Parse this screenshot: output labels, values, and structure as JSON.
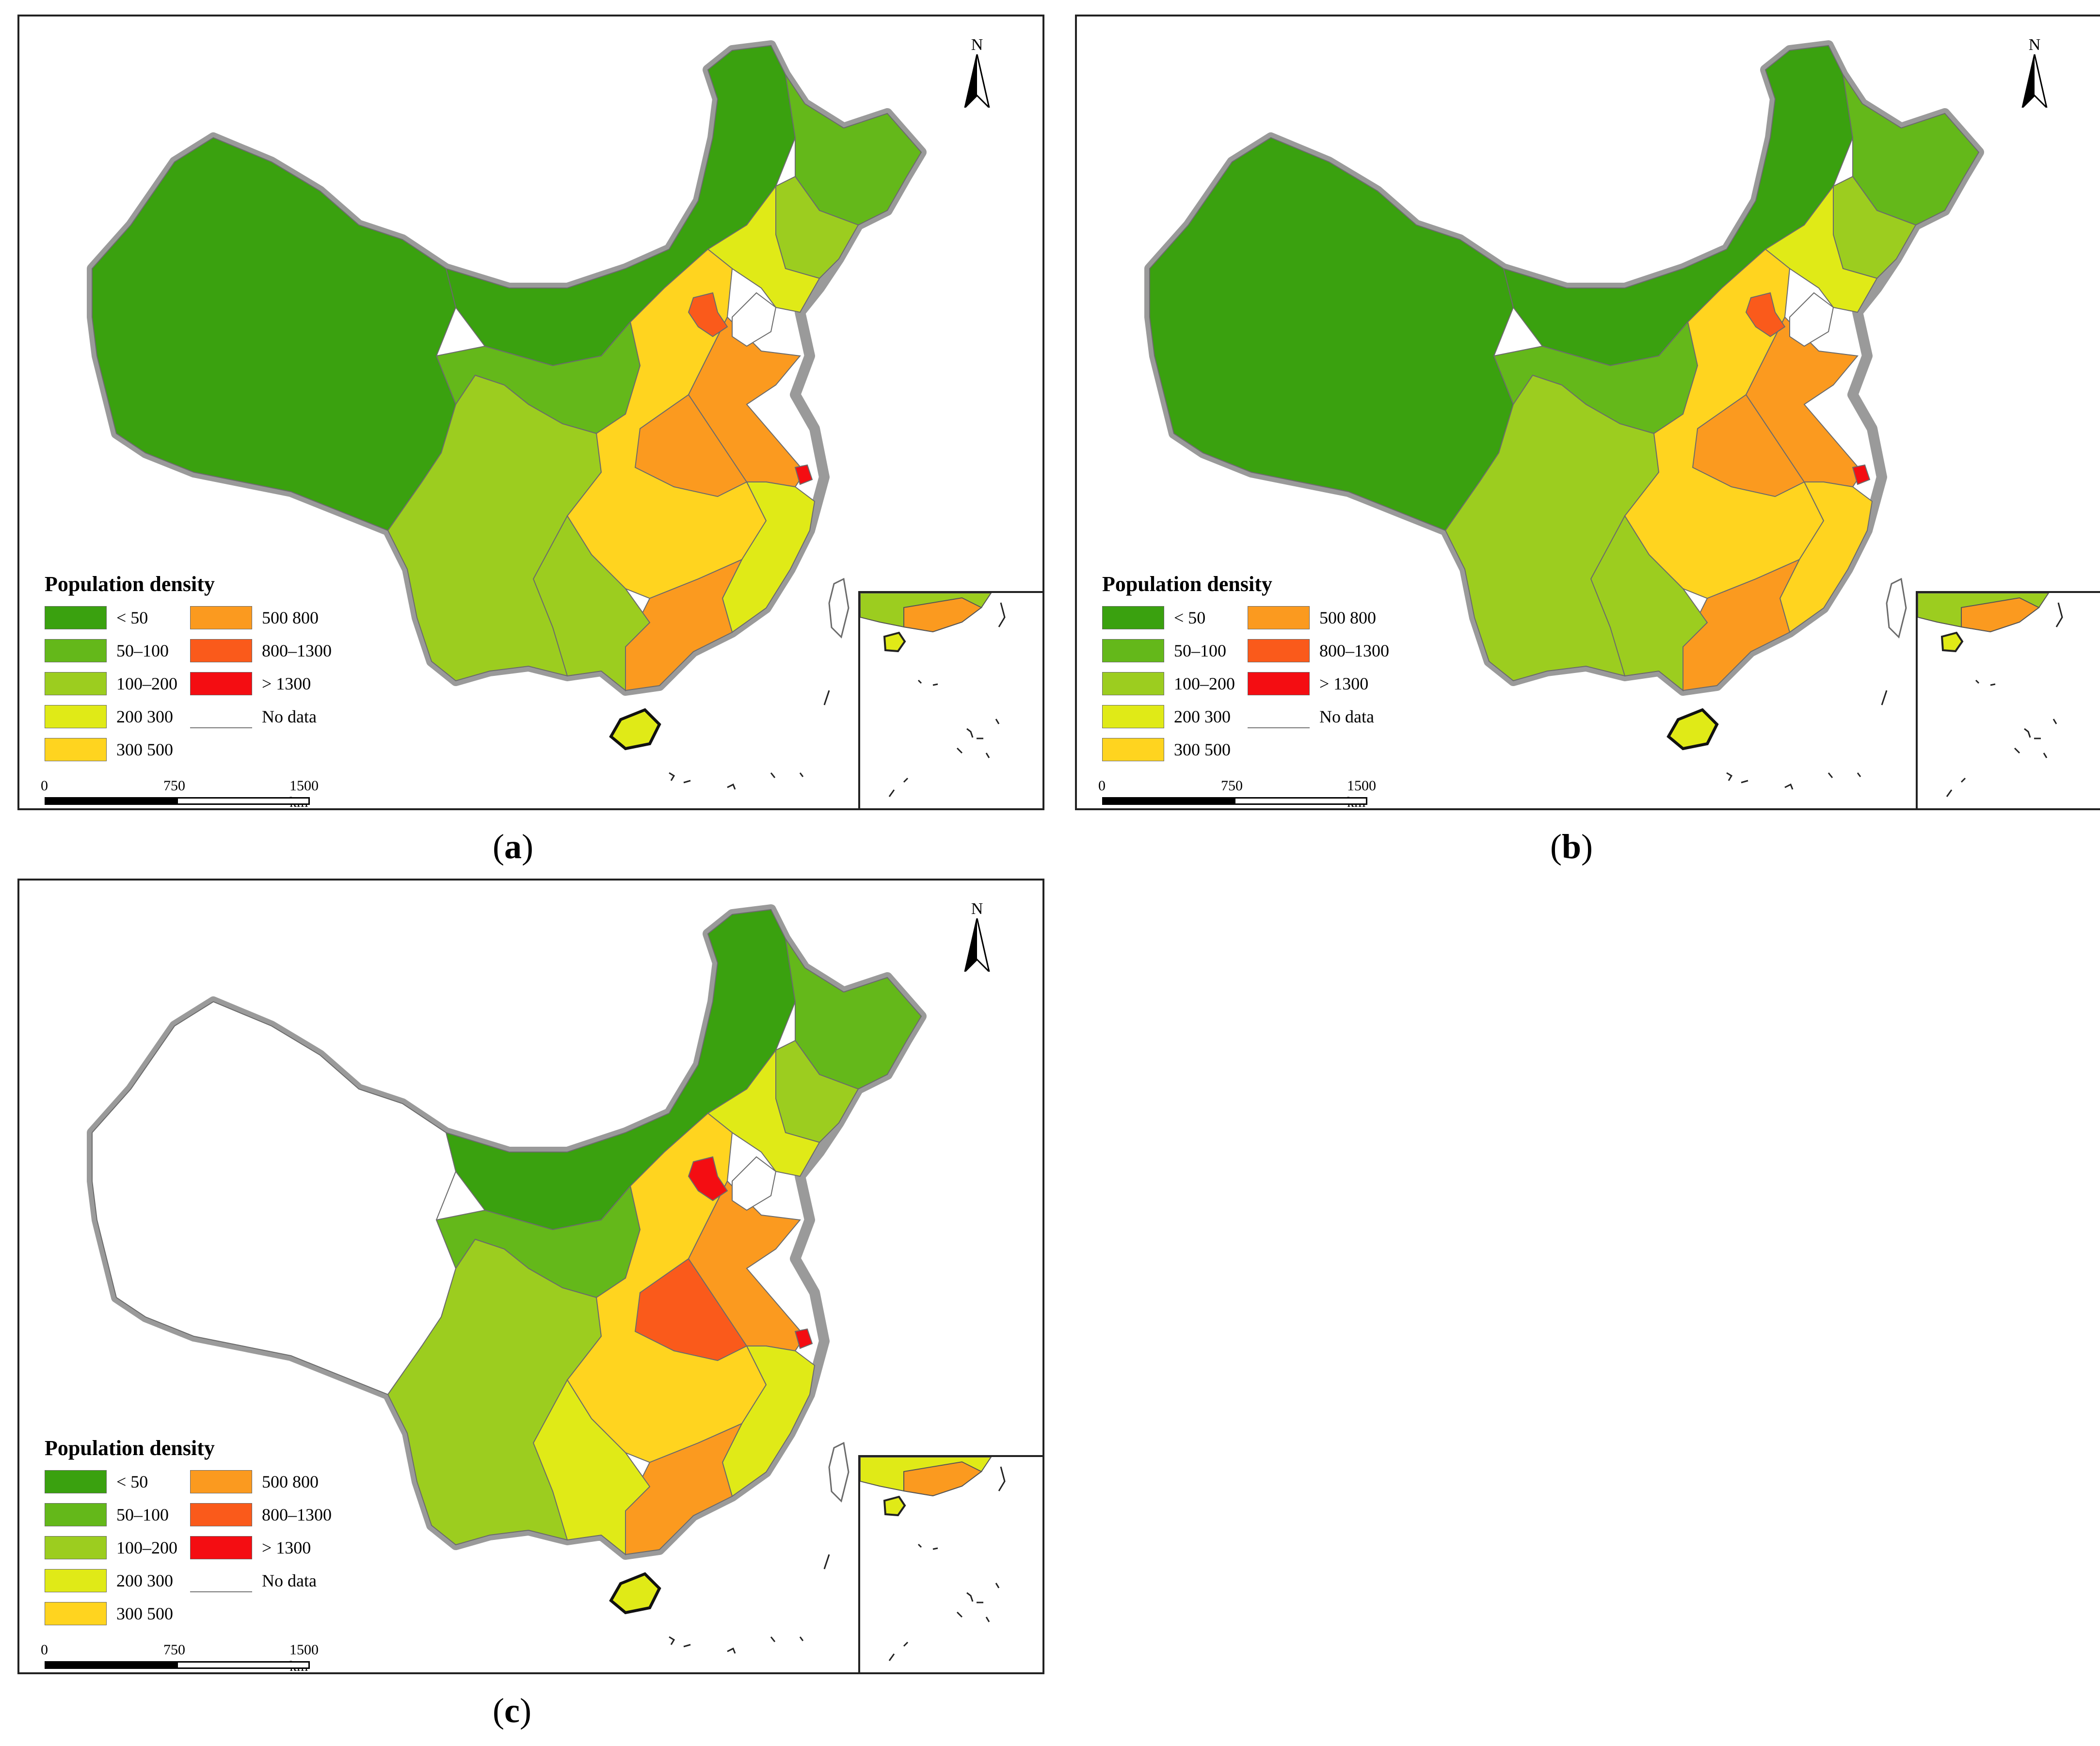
{
  "figure": {
    "panels": [
      {
        "id": "a",
        "caption_open": "(",
        "caption_letter": "a",
        "caption_close": ")"
      },
      {
        "id": "b",
        "caption_open": "(",
        "caption_letter": "b",
        "caption_close": ")"
      },
      {
        "id": "c",
        "caption_open": "(",
        "caption_letter": "c",
        "caption_close": ")"
      }
    ]
  },
  "legend": {
    "title": "Population density",
    "classes": [
      {
        "label": "< 50",
        "color": "#3aa10f"
      },
      {
        "label": "50–100",
        "color": "#64b81a"
      },
      {
        "label": "100–200",
        "color": "#9ccd1f"
      },
      {
        "label": "200  300",
        "color": "#e0ea17"
      },
      {
        "label": "300  500",
        "color": "#ffd41f"
      },
      {
        "label": "500  800",
        "color": "#fb9a1f"
      },
      {
        "label": "800–1300",
        "color": "#fa5a1b"
      },
      {
        "label": "> 1300",
        "color": "#f40d12"
      },
      {
        "label": "No data",
        "color": "#ffffff"
      }
    ]
  },
  "scale": {
    "ticks": [
      "0",
      "750",
      "1500 km"
    ]
  },
  "north_arrow": {
    "label": "N"
  },
  "colors": {
    "border_gray": "#9a9a9a",
    "province_line": "#6b6b6b",
    "frame": "#222222"
  },
  "map_fills": {
    "a": {
      "northwest": "#3aa10f",
      "north": "#3aa10f",
      "northeast": "#64b81a",
      "northeast2": "#9ccd1f",
      "liaoning": "#e0ea17",
      "northcentral": "#64b81a",
      "southwest": "#9ccd1f",
      "central": "#ffd41f",
      "east": "#fb9a1f",
      "shandong": "#fb9a1f",
      "southeast": "#e0ea17",
      "guangdong": "#fb9a1f",
      "south": "#9ccd1f",
      "hainan": "#e0ea17",
      "beijing": "#fa5a1b",
      "shanghai": "#f40d12"
    },
    "b": {
      "northwest": "#3aa10f",
      "north": "#3aa10f",
      "northeast": "#64b81a",
      "northeast2": "#9ccd1f",
      "liaoning": "#e0ea17",
      "northcentral": "#64b81a",
      "southwest": "#9ccd1f",
      "central": "#ffd41f",
      "east": "#fb9a1f",
      "shandong": "#fb9a1f",
      "southeast": "#ffd41f",
      "guangdong": "#fb9a1f",
      "south": "#9ccd1f",
      "hainan": "#e0ea17",
      "beijing": "#fa5a1b",
      "shanghai": "#f40d12"
    },
    "c": {
      "northwest": "#ffffff",
      "north": "#3aa10f",
      "northeast": "#64b81a",
      "northeast2": "#9ccd1f",
      "liaoning": "#e0ea17",
      "northcentral": "#64b81a",
      "southwest": "#9ccd1f",
      "central": "#ffd41f",
      "east": "#fa5a1b",
      "shandong": "#fb9a1f",
      "southeast": "#e0ea17",
      "guangdong": "#fb9a1f",
      "south": "#e0ea17",
      "hainan": "#e0ea17",
      "beijing": "#f40d12",
      "shanghai": "#f40d12"
    }
  }
}
